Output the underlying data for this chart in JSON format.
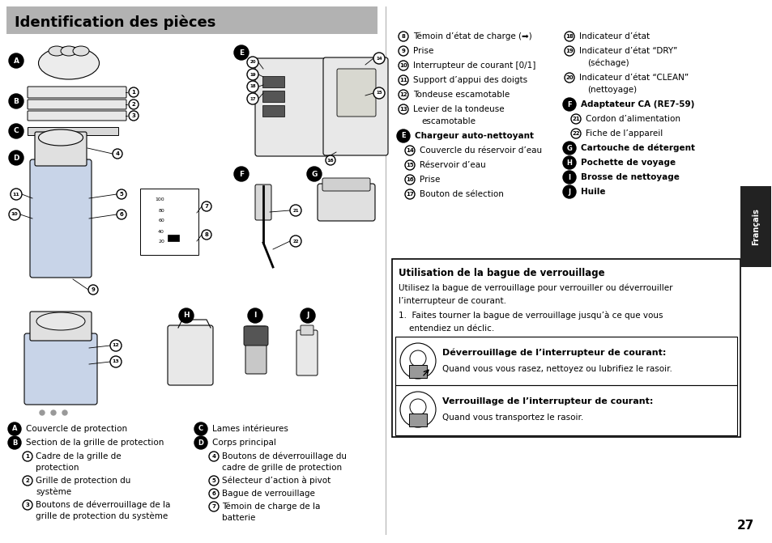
{
  "title": "Identification des pièces",
  "title_bg": "#b2b2b2",
  "title_color": "#000000",
  "page_bg": "#ffffff",
  "page_number": "27",
  "sidebar_color": "#222222",
  "border_color": "#000000",
  "col1_items": [
    {
      "num": "8",
      "text": "Témoin d’état de charge (➡)",
      "multi": false
    },
    {
      "num": "9",
      "text": "Prise",
      "multi": false
    },
    {
      "num": "10",
      "text": "Interrupteur de courant [0/1]",
      "multi": false
    },
    {
      "num": "11",
      "text": "Support d’appui des doigts",
      "multi": false
    },
    {
      "num": "12",
      "text": "Tondeuse escamotable",
      "multi": false
    },
    {
      "num": "13",
      "text": "Levier de la tondeuse",
      "text2": "escamotable",
      "multi": true
    }
  ],
  "col1_E_item": {
    "letter": "E",
    "text": "Chargeur auto-nettoyant"
  },
  "col1_sub_items": [
    {
      "num": "14",
      "text": "Couvercle du réservoir d’eau"
    },
    {
      "num": "15",
      "text": "Réservoir d’eau"
    },
    {
      "num": "16",
      "text": "Prise"
    },
    {
      "num": "17",
      "text": "Bouton de sélection"
    }
  ],
  "col2_items": [
    {
      "num": "18",
      "text": "Indicateur d’état",
      "multi": false
    },
    {
      "num": "19",
      "text": "Indicateur d’état “DRY”",
      "text2": "(séchage)",
      "multi": true
    },
    {
      "num": "20",
      "text": "Indicateur d’état “CLEAN”",
      "text2": "(nettoyage)",
      "multi": true
    }
  ],
  "col2_F_item": {
    "letter": "F",
    "text": "Adaptateur CA (RE7-59)"
  },
  "col2_sub_items": [
    {
      "num": "21",
      "text": "Cordon d’alimentation"
    },
    {
      "num": "22",
      "text": "Fiche de l’appareil"
    }
  ],
  "col2_bold_items": [
    {
      "letter": "G",
      "text": "Cartouche de détergent"
    },
    {
      "letter": "H",
      "text": "Pochette de voyage"
    },
    {
      "letter": "I",
      "text": "Brosse de nettoyage"
    },
    {
      "letter": "J",
      "text": "Huile"
    }
  ],
  "bottom_left_items": [
    {
      "letter": "A",
      "text": "Couvercle de protection",
      "is_letter": true,
      "indent": false
    },
    {
      "letter": "B",
      "text": "Section de la grille de protection",
      "is_letter": true,
      "indent": false
    },
    {
      "num": "1",
      "text": "Cadre de la grille de",
      "text2": "protection",
      "is_letter": false,
      "indent": true,
      "multi": true
    },
    {
      "num": "2",
      "text": "Grille de protection du",
      "text2": "système",
      "is_letter": false,
      "indent": true,
      "multi": true
    },
    {
      "num": "3",
      "text": "Boutons de déverrouillage de la",
      "text2": "grille de protection du système",
      "is_letter": false,
      "indent": true,
      "multi": true
    }
  ],
  "bottom_right_items": [
    {
      "letter": "C",
      "text": "Lames intérieures",
      "is_letter": true,
      "indent": false
    },
    {
      "letter": "D",
      "text": "Corps principal",
      "is_letter": true,
      "indent": false
    },
    {
      "num": "4",
      "text": "Boutons de déverrouillage du",
      "text2": "cadre de grille de protection",
      "is_letter": false,
      "indent": true,
      "multi": true
    },
    {
      "num": "5",
      "text": "Sélecteur d’action à pivot",
      "is_letter": false,
      "indent": true,
      "multi": false
    },
    {
      "num": "6",
      "text": "Bague de verrouillage",
      "is_letter": false,
      "indent": true,
      "multi": false
    },
    {
      "num": "7",
      "text": "Témoin de charge de la",
      "text2": "batterie",
      "is_letter": false,
      "indent": true,
      "multi": true
    }
  ],
  "box_title": "Utilisation de la bague de verrouillage",
  "box_text1": "Utilisez la bague de verrouillage pour verrouiller ou déverrouiller",
  "box_text1b": "l’interrupteur de courant.",
  "box_text2": "1.  Faites tourner la bague de verrouillage jusqu’à ce que vous",
  "box_text2b": "    entendiez un déclic.",
  "sub_box1_title": "Déverrouillage de l’interrupteur de courant:",
  "sub_box1_text": "Quand vous vous rasez, nettoyez ou lubrifiez le rasoir.",
  "sub_box2_title": "Verrouillage de l’interrupteur de courant:",
  "sub_box2_text": "Quand vous transportez le rasoir.",
  "sidebar_label": "Français"
}
